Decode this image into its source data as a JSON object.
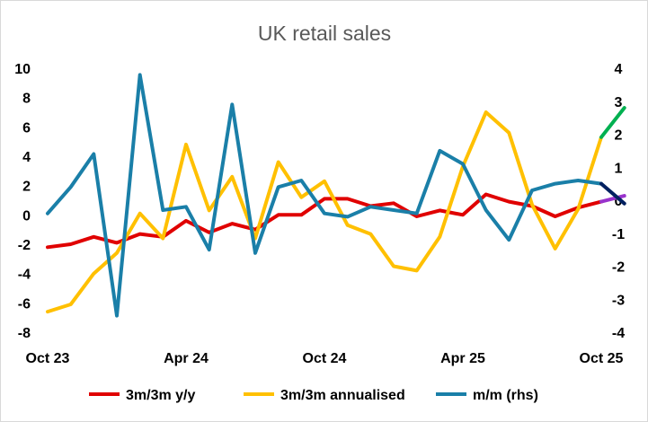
{
  "chart_data": {
    "type": "line",
    "title": "UK retail sales",
    "x_tick_labels": [
      "Oct 23",
      "Apr 24",
      "Oct 24",
      "Apr 25",
      "Oct 25"
    ],
    "x_tick_index": [
      0,
      6,
      12,
      18,
      24
    ],
    "x_count": 25,
    "left_axis": {
      "ylim": [
        -8,
        10
      ],
      "ticks": [
        -8,
        -6,
        -4,
        -2,
        0,
        2,
        4,
        6,
        8,
        10
      ]
    },
    "right_axis": {
      "ylim": [
        -4,
        4
      ],
      "ticks": [
        -4,
        -3,
        -2,
        -1,
        0,
        1,
        2,
        3,
        4
      ]
    },
    "grid": false,
    "legend_position": "bottom",
    "series": [
      {
        "name": "3m/3m y/y",
        "axis": "left",
        "color": "#e00000",
        "values": [
          -2.2,
          -2.0,
          -1.5,
          -1.9,
          -1.3,
          -1.5,
          -0.4,
          -1.2,
          -0.6,
          -1.0,
          0.0,
          0.0,
          1.1,
          1.1,
          0.6,
          0.8,
          -0.1,
          0.3,
          0.0,
          1.4,
          0.9,
          0.6,
          -0.1,
          0.5,
          0.9
        ],
        "projection": {
          "color": "#9933cc",
          "values": [
            0.9,
            1.3
          ]
        }
      },
      {
        "name": "3m/3m annualised",
        "axis": "left",
        "color": "#ffc000",
        "values": [
          -6.6,
          -6.1,
          -4.0,
          -2.6,
          0.1,
          -1.6,
          4.8,
          0.3,
          2.6,
          -1.6,
          3.6,
          1.2,
          2.3,
          -0.7,
          -1.3,
          -3.5,
          -3.8,
          -1.5,
          3.3,
          7.0,
          5.6,
          0.7,
          -2.3,
          0.4,
          5.3
        ],
        "projection": {
          "color": "#00b050",
          "values": [
            5.3,
            7.3
          ]
        }
      },
      {
        "name": "m/m (rhs)",
        "axis": "right",
        "color": "#1a7fa8",
        "values": [
          -0.4,
          0.4,
          1.4,
          -3.5,
          3.8,
          -0.3,
          -0.2,
          -1.5,
          2.9,
          -1.6,
          0.4,
          0.6,
          -0.4,
          -0.5,
          -0.2,
          -0.3,
          -0.4,
          1.5,
          1.1,
          -0.3,
          -1.2,
          0.3,
          0.5,
          0.6,
          0.5
        ],
        "projection": {
          "color": "#002060",
          "values": [
            0.5,
            -0.1
          ]
        }
      }
    ]
  }
}
